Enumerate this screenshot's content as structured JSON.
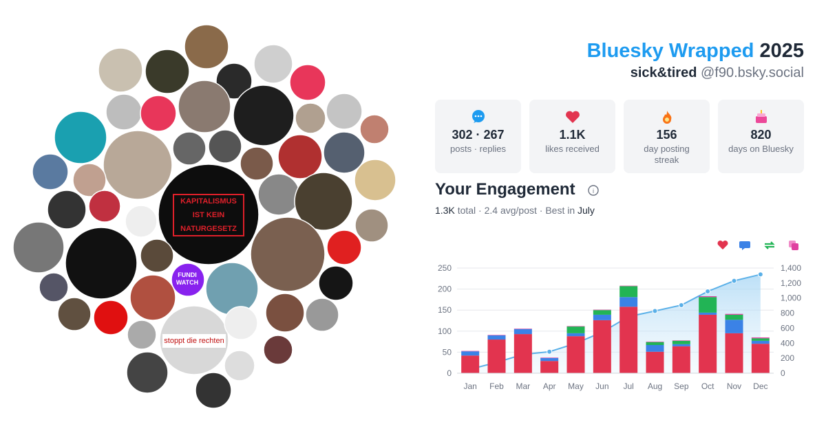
{
  "header": {
    "title": "Bluesky Wrapped",
    "year": "2025",
    "display_name": "sick&tired",
    "handle": "@f90.bsky.social"
  },
  "stats": [
    {
      "value": "302 · 267",
      "label": "posts · replies"
    },
    {
      "value": "1.1K",
      "label": "likes received"
    },
    {
      "value": "156",
      "label": "day posting streak"
    },
    {
      "value": "820",
      "label": "days on Bluesky"
    }
  ],
  "engagement": {
    "title": "Your Engagement",
    "total": "1.3K",
    "summary": "total · 2.4 avg/post · Best in",
    "best_month": "July"
  },
  "avatars": {
    "poster_lines": [
      "KAPITALISMUS",
      "IST KEIN",
      "NATURGESETZ"
    ],
    "sticker": "stoppt die rechten",
    "logo_lines": [
      "FUNDI",
      "WATCH"
    ]
  },
  "chart_data": {
    "type": "bar",
    "stacked": true,
    "grid": true,
    "categories": [
      "Jan",
      "Feb",
      "Mar",
      "Apr",
      "May",
      "Jun",
      "Jul",
      "Aug",
      "Sep",
      "Oct",
      "Nov",
      "Dec"
    ],
    "series": [
      {
        "color": "#e2344f",
        "values": [
          42,
          80,
          93,
          29,
          88,
          126,
          158,
          51,
          64,
          139,
          95,
          70
        ]
      },
      {
        "color": "#3b82e6",
        "values": [
          10,
          10,
          12,
          7,
          7,
          13,
          23,
          16,
          5,
          5,
          32,
          7
        ]
      },
      {
        "color": "#22b455",
        "values": [
          0,
          0,
          0,
          0,
          16,
          11,
          26,
          7,
          8,
          37,
          12,
          6
        ]
      },
      {
        "color": "#e040a0",
        "values": [
          1,
          1,
          1,
          1,
          1,
          1,
          1,
          1,
          1,
          2,
          2,
          2
        ]
      },
      {
        "color": "#5ab0e8",
        "type": "line",
        "axis": "y2",
        "values": [
          53,
          144,
          250,
          286,
          397,
          547,
          754,
          828,
          906,
          1089,
          1230,
          1315
        ]
      }
    ],
    "ylim": [
      0,
      250
    ],
    "yticks": [
      0,
      50,
      100,
      150,
      200,
      250
    ],
    "y2lim": [
      0,
      1400
    ],
    "y2ticks": [
      0,
      {
        "value": 200,
        "label": "200"
      },
      {
        "value": 400,
        "label": "400"
      },
      {
        "value": 600,
        "label": "600"
      },
      {
        "value": 800,
        "label": "800"
      },
      {
        "value": 1000,
        "label": "1,000"
      },
      {
        "value": 1200,
        "label": "1,200"
      },
      {
        "value": 1400,
        "label": "1,400"
      }
    ]
  }
}
